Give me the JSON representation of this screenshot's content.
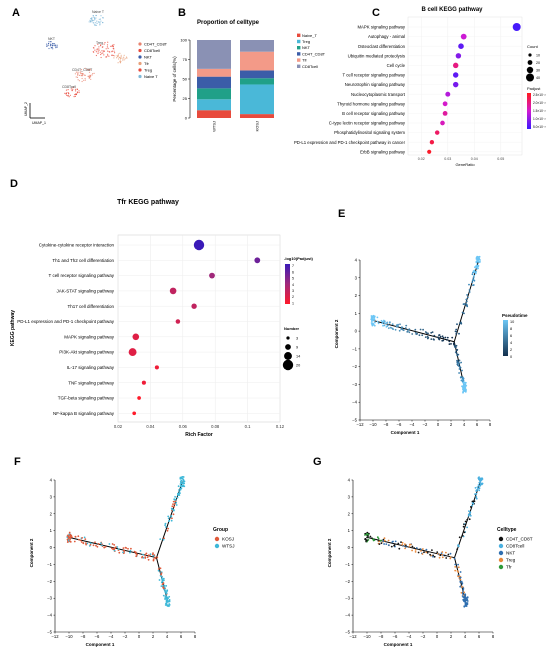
{
  "panels": {
    "A": {
      "letter": "A",
      "xlabel": "UMAP_1",
      "ylabel": "UMAP_2",
      "cluster_labels": [
        "Naive T",
        "NKT",
        "Treg",
        "CD4T_CD8T",
        "CD8Tcell"
      ],
      "legend": [
        {
          "label": "CD4T_CD8T",
          "color": "#e8836f"
        },
        {
          "label": "CD8Tcell",
          "color": "#e84a3c"
        },
        {
          "label": "NKT",
          "color": "#3b5da8"
        },
        {
          "label": "Tfr",
          "color": "#e8a07a"
        },
        {
          "label": "Treg",
          "color": "#e84a3c"
        },
        {
          "label": "Naive T",
          "color": "#7fb8d8"
        }
      ]
    },
    "B": {
      "letter": "B",
      "title": "Proportion of celltype",
      "ylabel": "Percentage of cells(%)",
      "yticks": [
        "0",
        "25",
        "50",
        "75",
        "100"
      ],
      "legend": [
        {
          "label": "Naive_T",
          "color": "#e84a3c"
        },
        {
          "label": "Treg",
          "color": "#4ab8d8"
        },
        {
          "label": "NKT",
          "color": "#20a088"
        },
        {
          "label": "CD4T_CD8T",
          "color": "#3b5da8"
        },
        {
          "label": "Tfr",
          "color": "#f39a88"
        },
        {
          "label": "CD8Tcell",
          "color": "#8a91b4"
        }
      ]
    },
    "C": {
      "letter": "C",
      "title": "B cell KEGG pathway",
      "xlabel": "GeneRatio",
      "xticks": [
        "0.02",
        "0.03",
        "0.04",
        "0.05"
      ],
      "size_legend_title": "Count",
      "size_legend": [
        "10",
        "20",
        "30",
        "40"
      ],
      "color_legend_title": "Padjust",
      "color_legend": [
        "2.5×10⁻²",
        "2.0×10⁻²",
        "1.5×10⁻²",
        "1.0×10⁻²",
        "5.0×10⁻³"
      ]
    },
    "D": {
      "letter": "D",
      "title": "Tfr KEGG pathway",
      "xlabel": "Rich Factor",
      "ylabel": "KEGG pathway",
      "xticks": [
        "0.02",
        "0.04",
        "0.06",
        "0.08",
        "0.1",
        "0.12"
      ],
      "color_legend_title": "-log10(Padjust)",
      "color_legend": [
        "7",
        "6",
        "5",
        "4",
        "3",
        "2",
        "1"
      ],
      "size_legend_title": "Number",
      "size_legend": [
        "3",
        "9",
        "14",
        "20"
      ]
    },
    "E": {
      "letter": "E",
      "xlabel": "Component 1",
      "ylabel": "Component 2",
      "legend_title": "Pseudotime",
      "legend_ticks": [
        "10",
        "8",
        "6",
        "4",
        "2",
        "0"
      ]
    },
    "F": {
      "letter": "F",
      "xlabel": "Component 1",
      "ylabel": "Component 2",
      "legend_title": "Group",
      "legend": [
        {
          "label": "KOSJ",
          "color": "#e05a3a"
        },
        {
          "label": "WTSJ",
          "color": "#3eb8d8"
        }
      ]
    },
    "G": {
      "letter": "G",
      "xlabel": "Component 1",
      "ylabel": "Component 2",
      "legend_title": "Celltype",
      "legend": [
        {
          "label": "CD4T_CD8T",
          "color": "#111111"
        },
        {
          "label": "CD8Tcell",
          "color": "#4ab0e0"
        },
        {
          "label": "NKT",
          "color": "#2f6fb0"
        },
        {
          "label": "Treg",
          "color": "#e8883a"
        },
        {
          "label": "Tfr",
          "color": "#2f9a3a"
        }
      ]
    }
  },
  "chart_data": [
    {
      "panel": "B",
      "type": "bar",
      "stacked": true,
      "title": "Proportion of celltype",
      "categories": [
        "WTSJ",
        "KOSJ"
      ],
      "ylim": [
        0,
        100
      ],
      "series": [
        {
          "name": "Naive_T",
          "values": [
            10,
            5
          ]
        },
        {
          "name": "Treg",
          "values": [
            14,
            38
          ]
        },
        {
          "name": "NKT",
          "values": [
            14,
            8
          ]
        },
        {
          "name": "CD4T_CD8T",
          "values": [
            15,
            10
          ]
        },
        {
          "name": "Tfr",
          "values": [
            10,
            24
          ]
        },
        {
          "name": "CD8Tcell",
          "values": [
            37,
            15
          ]
        }
      ]
    },
    {
      "panel": "C",
      "type": "scatter",
      "title": "B cell KEGG pathway",
      "xlabel": "GeneRatio",
      "xlim": [
        0.015,
        0.058
      ],
      "categories": [
        "MAPK signaling pathway",
        "Autophagy - animal",
        "Osteoclast differentiation",
        "Ubiquitin mediated proteolysis",
        "Cell cycle",
        "T cell receptor signaling pathway",
        "Neurotrophin signaling pathway",
        "Nucleocytoplasmic transport",
        "Thyroid hormone signaling pathway",
        "B cell receptor signaling pathway",
        "C-type lectin receptor signaling pathway",
        "Phosphatidylinositol signaling system",
        "PD-L1 expression and PD-1 checkpoint pathway in cancer",
        "ErbB signaling pathway"
      ],
      "x": [
        0.056,
        0.036,
        0.035,
        0.034,
        0.033,
        0.033,
        0.033,
        0.03,
        0.029,
        0.029,
        0.028,
        0.026,
        0.024,
        0.023
      ],
      "count": [
        40,
        26,
        25,
        24,
        24,
        24,
        24,
        21,
        20,
        20,
        19,
        18,
        17,
        16
      ],
      "padjust": [
        0.001,
        0.012,
        0.003,
        0.006,
        0.018,
        0.003,
        0.005,
        0.01,
        0.013,
        0.016,
        0.014,
        0.02,
        0.022,
        0.024
      ]
    },
    {
      "panel": "D",
      "type": "scatter",
      "title": "Tfr KEGG pathway",
      "xlabel": "Rich Factor",
      "ylabel": "KEGG pathway",
      "xlim": [
        0.02,
        0.12
      ],
      "categories": [
        "Cytokine-cytokine receptor interaction",
        "Th1 and Th2 cell differentiation",
        "T cell receptor signaling pathway",
        "JAK-STAT signaling pathway",
        "Th17 cell differentiation",
        "PD-L1 expression and PD-1 checkpoint pathway",
        "MAPK signaling pathway",
        "PI3K-Akt signaling pathway",
        "IL-17 signaling pathway",
        "TNF signaling pathway",
        "TGF-beta signaling pathway",
        "NF-kappa B signaling pathway"
      ],
      "x": [
        0.07,
        0.106,
        0.078,
        0.054,
        0.067,
        0.057,
        0.031,
        0.029,
        0.044,
        0.036,
        0.033,
        0.03
      ],
      "number": [
        20,
        9,
        9,
        11,
        8,
        6,
        11,
        14,
        5,
        5,
        4,
        4
      ],
      "neglog10_padjust": [
        7,
        5.5,
        4,
        3,
        3,
        2.5,
        2,
        2,
        1.5,
        1.5,
        1,
        1
      ]
    },
    {
      "panel": "E",
      "type": "scatter",
      "xlabel": "Component 1",
      "ylabel": "Component 2",
      "xlim": [
        -12,
        8
      ],
      "ylim": [
        -5,
        4
      ]
    },
    {
      "panel": "F",
      "type": "scatter",
      "xlabel": "Component 1",
      "ylabel": "Component 2",
      "xlim": [
        -12,
        8
      ],
      "ylim": [
        -5,
        4
      ]
    },
    {
      "panel": "G",
      "type": "scatter",
      "xlabel": "Component 1",
      "ylabel": "Component 2",
      "xlim": [
        -12,
        8
      ],
      "ylim": [
        -5,
        4
      ]
    }
  ]
}
